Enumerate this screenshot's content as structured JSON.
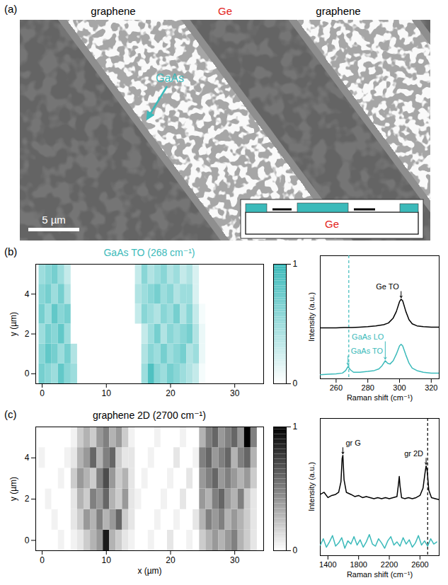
{
  "micrograph": {
    "panel": "(a)",
    "labels": [
      {
        "text": "graphene",
        "color": "#000000"
      },
      {
        "text": "Ge",
        "color": "#e3241b"
      },
      {
        "text": "graphene",
        "color": "#000000"
      }
    ],
    "annotation": {
      "text": "GaAs",
      "color": "#3bbaba"
    },
    "scale_bar": "5 µm",
    "inset_label": {
      "text": "Ge",
      "color": "#e3241b"
    }
  },
  "chart_data": [
    {
      "panel": "(b)",
      "type": "heatmap",
      "title": "GaAs TO (268 cm⁻¹)",
      "color": "#3bbaba",
      "y_label": "y (µm)",
      "x": [
        0,
        1,
        2,
        3,
        4,
        5,
        6,
        7,
        8,
        9,
        10,
        11,
        12,
        13,
        14,
        15,
        16,
        17,
        18,
        19,
        20,
        21,
        22,
        23,
        24,
        25,
        26,
        27,
        28,
        29,
        30,
        31,
        32,
        33,
        34
      ],
      "y": [
        0,
        1,
        2,
        3,
        4,
        5
      ],
      "values": [
        [
          0.7,
          0.6,
          0.5,
          0.8,
          0.6,
          0.5,
          0,
          0,
          0,
          0,
          0,
          0,
          0,
          0,
          0,
          0,
          0.5,
          0.9,
          0.6,
          0.5,
          0.7,
          0.6,
          0.5,
          0.4,
          0.3,
          0.05,
          0,
          0,
          0,
          0,
          0,
          0,
          0,
          0,
          0
        ],
        [
          0.6,
          0.8,
          0.7,
          0.5,
          0.7,
          0.4,
          0,
          0,
          0,
          0,
          0,
          0,
          0,
          0,
          0,
          0,
          0.4,
          0.6,
          0.5,
          0.7,
          0.5,
          0.6,
          0.7,
          0.4,
          0.5,
          0.1,
          0,
          0,
          0,
          0,
          0,
          0,
          0,
          0,
          0
        ],
        [
          0.5,
          0.7,
          0.6,
          0.8,
          0.5,
          0,
          0,
          0,
          0,
          0,
          0,
          0,
          0,
          0,
          0,
          0,
          0.3,
          0.5,
          0.7,
          0.4,
          0.6,
          0.5,
          0.6,
          0.7,
          0.4,
          0.1,
          0,
          0,
          0,
          0,
          0,
          0,
          0,
          0,
          0
        ],
        [
          0.7,
          0.5,
          0.8,
          0.6,
          0.7,
          0,
          0,
          0,
          0,
          0,
          0,
          0,
          0,
          0,
          0,
          0.3,
          0.6,
          0.5,
          0.4,
          0.6,
          0.5,
          0.7,
          0.4,
          0.6,
          0.3,
          0.05,
          0,
          0,
          0,
          0,
          0,
          0,
          0,
          0,
          0
        ],
        [
          0.6,
          0.7,
          0.5,
          0.7,
          0.4,
          0,
          0,
          0,
          0,
          0,
          0,
          0,
          0,
          0,
          0,
          0.4,
          0.5,
          0.6,
          0.7,
          0.5,
          0.6,
          0.4,
          0.5,
          0.5,
          0.2,
          0,
          0,
          0,
          0,
          0,
          0,
          0,
          0,
          0,
          0
        ],
        [
          0.5,
          0.6,
          0.7,
          0.5,
          0.3,
          0,
          0,
          0,
          0,
          0,
          0,
          0,
          0,
          0,
          0,
          0.3,
          0.6,
          0.4,
          0.5,
          0.6,
          0.4,
          0.5,
          0.3,
          0.4,
          0.2,
          0,
          0,
          0,
          0,
          0,
          0,
          0,
          0,
          0,
          0
        ]
      ],
      "xlim": [
        -1,
        34.5
      ],
      "ylim": [
        -0.5,
        5.5
      ],
      "xticks": [
        0,
        10,
        20,
        30
      ],
      "yticks": [
        0,
        2,
        4
      ],
      "colorbar": {
        "range": [
          0,
          1
        ],
        "ticks": [
          0,
          1
        ]
      }
    },
    {
      "type": "line",
      "x_label": "Raman shift (cm⁻¹)",
      "y_label": "Intensity (a.u.)",
      "xlim": [
        250,
        325
      ],
      "xticks": [
        260,
        280,
        300,
        320
      ],
      "ylim": [
        0,
        1.5
      ],
      "tick_labels": "x",
      "series": [
        {
          "color": "#000000",
          "x": [
            250,
            255,
            260,
            265,
            270,
            275,
            280,
            285,
            290,
            293,
            296,
            298,
            300,
            301,
            302,
            304,
            306,
            308,
            311,
            315,
            320,
            325
          ],
          "values": [
            0.62,
            0.62,
            0.62,
            0.625,
            0.625,
            0.63,
            0.635,
            0.645,
            0.66,
            0.68,
            0.74,
            0.82,
            0.94,
            0.97,
            0.95,
            0.82,
            0.72,
            0.67,
            0.645,
            0.635,
            0.63,
            0.63
          ]
        },
        {
          "color": "#3bbaba",
          "x": [
            250,
            255,
            260,
            264,
            266,
            267.5,
            269,
            271,
            275,
            280,
            284,
            287,
            289,
            291,
            292.5,
            294,
            296,
            298,
            300,
            301,
            302,
            304,
            306,
            308,
            311,
            315,
            320,
            325
          ],
          "values": [
            0.05,
            0.055,
            0.06,
            0.07,
            0.1,
            0.15,
            0.11,
            0.08,
            0.08,
            0.09,
            0.1,
            0.12,
            0.16,
            0.22,
            0.19,
            0.18,
            0.22,
            0.3,
            0.4,
            0.42,
            0.4,
            0.29,
            0.19,
            0.13,
            0.1,
            0.08,
            0.07,
            0.07
          ]
        }
      ],
      "annotations": [
        {
          "text": "Ge TO",
          "x": 301,
          "y": 0.97,
          "color": "#000000"
        },
        {
          "text": "GaAs TO",
          "x": 267.5,
          "y": 0.15,
          "color": "#3bbaba"
        },
        {
          "text": "GaAs LO",
          "x": 291,
          "y": 0.22,
          "color": "#3bbaba"
        }
      ],
      "vline": {
        "x": 268,
        "color": "#3bbaba",
        "line_style": "dashed"
      }
    },
    {
      "panel": "(c)",
      "type": "heatmap",
      "title": "graphene 2D (2700 cm⁻¹)",
      "color": "#000000",
      "x_label": "x (µm)",
      "y_label": "y (µm)",
      "x": [
        0,
        1,
        2,
        3,
        4,
        5,
        6,
        7,
        8,
        9,
        10,
        11,
        12,
        13,
        14,
        15,
        16,
        17,
        18,
        19,
        20,
        21,
        22,
        23,
        24,
        25,
        26,
        27,
        28,
        29,
        30,
        31,
        32,
        33,
        34
      ],
      "y": [
        0,
        1,
        2,
        3,
        4,
        5
      ],
      "values": [
        [
          0,
          0,
          0,
          0.05,
          0,
          0.05,
          0.1,
          0.2,
          0.3,
          0.4,
          0.9,
          0.3,
          0.2,
          0.1,
          0.05,
          0,
          0,
          0.05,
          0,
          0,
          0.1,
          0,
          0,
          0.05,
          0,
          0.2,
          0.3,
          0.4,
          0.3,
          0.4,
          0.5,
          0.3,
          0.2,
          0.1,
          0
        ],
        [
          0,
          0,
          0.05,
          0,
          0,
          0.1,
          0.2,
          0.4,
          0.3,
          0.5,
          0.3,
          0.4,
          0.6,
          0.2,
          0.1,
          0,
          0,
          0,
          0.05,
          0,
          0,
          0.05,
          0,
          0,
          0.1,
          0.3,
          0.5,
          0.4,
          0.5,
          0.3,
          0.4,
          0.3,
          0.2,
          0.1,
          0
        ],
        [
          0,
          0.05,
          0,
          0,
          0,
          0.1,
          0.3,
          0.2,
          0.5,
          0.4,
          0.6,
          0.3,
          0.2,
          0.4,
          0.1,
          0.05,
          0,
          0,
          0,
          0.05,
          0,
          0,
          0.1,
          0,
          0,
          0.4,
          0.3,
          0.5,
          0.6,
          0.4,
          0.3,
          0.5,
          0.2,
          0.1,
          0
        ],
        [
          0,
          0,
          0,
          0.05,
          0,
          0.2,
          0.4,
          0.3,
          0.2,
          0.5,
          0.7,
          0.4,
          0.2,
          0.3,
          0.1,
          0,
          0.05,
          0,
          0,
          0,
          0.05,
          0,
          0,
          0.1,
          0,
          0.4,
          0.5,
          0.6,
          0.4,
          0.5,
          0.4,
          0.3,
          0.4,
          0.2,
          0
        ],
        [
          0.05,
          0,
          0,
          0,
          0.05,
          0.1,
          0.3,
          0.4,
          0.6,
          0.3,
          0.5,
          0.6,
          0.2,
          0.1,
          0.1,
          0,
          0,
          0.05,
          0,
          0,
          0,
          0.1,
          0,
          0,
          0.05,
          0.5,
          0.6,
          0.4,
          0.5,
          0.6,
          0.3,
          0.5,
          0.6,
          0.3,
          0
        ],
        [
          0,
          0,
          0,
          0,
          0,
          0.05,
          0.2,
          0.3,
          0.2,
          0.4,
          0.5,
          0.3,
          0.4,
          0.2,
          0.05,
          0,
          0,
          0,
          0.05,
          0,
          0,
          0,
          0.05,
          0,
          0,
          0.3,
          0.5,
          0.6,
          0.4,
          0.5,
          0.6,
          0.4,
          1.0,
          0.5,
          0
        ]
      ],
      "xlim": [
        -1,
        34.5
      ],
      "ylim": [
        -0.5,
        5.5
      ],
      "xticks": [
        0,
        10,
        20,
        30
      ],
      "yticks": [
        0,
        2,
        4
      ],
      "colorbar": {
        "range": [
          0,
          1
        ],
        "ticks": [
          0,
          1
        ]
      }
    },
    {
      "type": "line",
      "x_label": "Raman shift (cm⁻¹)",
      "y_label": "Intensity (a.u.)",
      "xlim": [
        1300,
        2850
      ],
      "xticks": [
        1400,
        1800,
        2200,
        2600
      ],
      "ylim": [
        0,
        1.3
      ],
      "tick_labels": "x",
      "series": [
        {
          "color": "#000000",
          "x": [
            1300,
            1350,
            1400,
            1450,
            1500,
            1540,
            1570,
            1585,
            1595,
            1610,
            1640,
            1700,
            1750,
            1800,
            1850,
            1900,
            1950,
            2000,
            2050,
            2100,
            2150,
            2200,
            2250,
            2300,
            2320,
            2330,
            2340,
            2360,
            2400,
            2450,
            2500,
            2550,
            2600,
            2640,
            2665,
            2680,
            2695,
            2715,
            2750,
            2800,
            2850
          ],
          "values": [
            0.58,
            0.6,
            0.55,
            0.57,
            0.58,
            0.6,
            0.7,
            0.92,
            0.95,
            0.72,
            0.6,
            0.58,
            0.56,
            0.57,
            0.55,
            0.56,
            0.55,
            0.54,
            0.55,
            0.54,
            0.55,
            0.54,
            0.55,
            0.56,
            0.68,
            0.75,
            0.66,
            0.55,
            0.54,
            0.55,
            0.54,
            0.55,
            0.57,
            0.64,
            0.78,
            0.85,
            0.8,
            0.62,
            0.55,
            0.54,
            0.53
          ]
        },
        {
          "color": "#3bbaba",
          "x": [
            1300,
            1340,
            1380,
            1420,
            1460,
            1500,
            1540,
            1580,
            1620,
            1660,
            1700,
            1740,
            1780,
            1820,
            1860,
            1900,
            1940,
            1980,
            2020,
            2060,
            2100,
            2140,
            2180,
            2220,
            2260,
            2300,
            2340,
            2380,
            2420,
            2460,
            2500,
            2540,
            2580,
            2620,
            2660,
            2700,
            2740,
            2780,
            2820
          ],
          "values": [
            0.1,
            0.16,
            0.08,
            0.13,
            0.19,
            0.09,
            0.12,
            0.17,
            0.07,
            0.14,
            0.11,
            0.18,
            0.1,
            0.15,
            0.08,
            0.13,
            0.2,
            0.11,
            0.09,
            0.16,
            0.12,
            0.07,
            0.14,
            0.18,
            0.1,
            0.13,
            0.09,
            0.17,
            0.11,
            0.15,
            0.08,
            0.12,
            0.19,
            0.1,
            0.14,
            0.09,
            0.16,
            0.11,
            0.13
          ]
        }
      ],
      "annotations": [
        {
          "text": "gr G",
          "x": 1595,
          "y": 0.95,
          "color": "#000000"
        },
        {
          "text": "gr 2D",
          "x": 2680,
          "y": 0.85,
          "color": "#000000"
        }
      ],
      "vline": {
        "x": 2700,
        "color": "#000000",
        "line_style": "dashed"
      }
    }
  ]
}
